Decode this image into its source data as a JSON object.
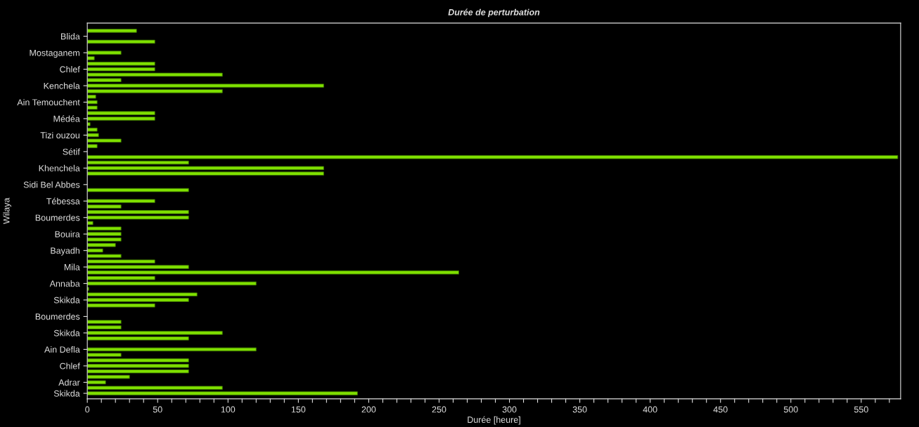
{
  "chart_data": {
    "type": "bar",
    "orientation": "horizontal",
    "title": "Durée de perturbation",
    "xlabel": "Durée [heure]",
    "ylabel": "Wilaya",
    "categories": [
      null,
      "Blida",
      null,
      null,
      "Mostaganem",
      null,
      null,
      "Chlef",
      null,
      null,
      "Kenchela",
      null,
      null,
      "Ain Temouchent",
      null,
      null,
      "Médéa",
      null,
      null,
      "Tizi ouzou",
      null,
      null,
      "Sétif",
      null,
      null,
      "Khenchela",
      null,
      null,
      "Sidi Bel Abbes",
      null,
      null,
      "Tébessa",
      null,
      null,
      "Boumerdes",
      null,
      null,
      "Bouira",
      null,
      null,
      "Bayadh",
      null,
      null,
      "Mila",
      null,
      null,
      "Annaba",
      null,
      null,
      "Skikda",
      null,
      null,
      "Boumerdes",
      null,
      null,
      "Skikda",
      null,
      null,
      "Ain Defla",
      null,
      null,
      "Chlef",
      null,
      null,
      "Adrar",
      null,
      "Skikda"
    ],
    "values": [
      35,
      null,
      48,
      null,
      24,
      5,
      48,
      48,
      96,
      24,
      168,
      96,
      6,
      7,
      7,
      48,
      48,
      2,
      7,
      8,
      24,
      7,
      null,
      576,
      72,
      168,
      168,
      null,
      null,
      72,
      null,
      48,
      24,
      72,
      72,
      4,
      24,
      24,
      24,
      20,
      11,
      24,
      48,
      72,
      264,
      48,
      120,
      1,
      78,
      72,
      48,
      null,
      null,
      24,
      24,
      96,
      72,
      null,
      120,
      24,
      72,
      72,
      72,
      30,
      13,
      96,
      192
    ],
    "color": "#7fe000",
    "xlim": [
      0,
      578
    ],
    "xticks": [
      0,
      {
        "value": 10,
        "label": null
      },
      {
        "value": 20,
        "label": null
      },
      {
        "value": 30,
        "label": null
      },
      {
        "value": 40,
        "label": null
      },
      50,
      {
        "value": 60,
        "label": null
      },
      {
        "value": 70,
        "label": null
      },
      {
        "value": 80,
        "label": null
      },
      {
        "value": 90,
        "label": null
      },
      100,
      {
        "value": 110,
        "label": null
      },
      {
        "value": 120,
        "label": null
      },
      {
        "value": 130,
        "label": null
      },
      {
        "value": 140,
        "label": null
      },
      150,
      {
        "value": 160,
        "label": null
      },
      {
        "value": 170,
        "label": null
      },
      {
        "value": 180,
        "label": null
      },
      {
        "value": 190,
        "label": null
      },
      200,
      {
        "value": 210,
        "label": null
      },
      {
        "value": 220,
        "label": null
      },
      {
        "value": 230,
        "label": null
      },
      {
        "value": 240,
        "label": null
      },
      250,
      {
        "value": 260,
        "label": null
      },
      {
        "value": 270,
        "label": null
      },
      {
        "value": 280,
        "label": null
      },
      {
        "value": 290,
        "label": null
      },
      300,
      {
        "value": 310,
        "label": null
      },
      {
        "value": 320,
        "label": null
      },
      {
        "value": 330,
        "label": null
      },
      {
        "value": 340,
        "label": null
      },
      350,
      {
        "value": 360,
        "label": null
      },
      {
        "value": 370,
        "label": null
      },
      {
        "value": 380,
        "label": null
      },
      {
        "value": 390,
        "label": null
      },
      400,
      {
        "value": 410,
        "label": null
      },
      {
        "value": 420,
        "label": null
      },
      {
        "value": 430,
        "label": null
      },
      {
        "value": 440,
        "label": null
      },
      450,
      {
        "value": 460,
        "label": null
      },
      {
        "value": 470,
        "label": null
      },
      {
        "value": 480,
        "label": null
      },
      {
        "value": 490,
        "label": null
      },
      500,
      {
        "value": 510,
        "label": null
      },
      {
        "value": 520,
        "label": null
      },
      {
        "value": 530,
        "label": null
      },
      {
        "value": 540,
        "label": null
      },
      550,
      {
        "value": 560,
        "label": null
      },
      {
        "value": 570,
        "label": null
      }
    ],
    "grid": false,
    "legend": false
  }
}
